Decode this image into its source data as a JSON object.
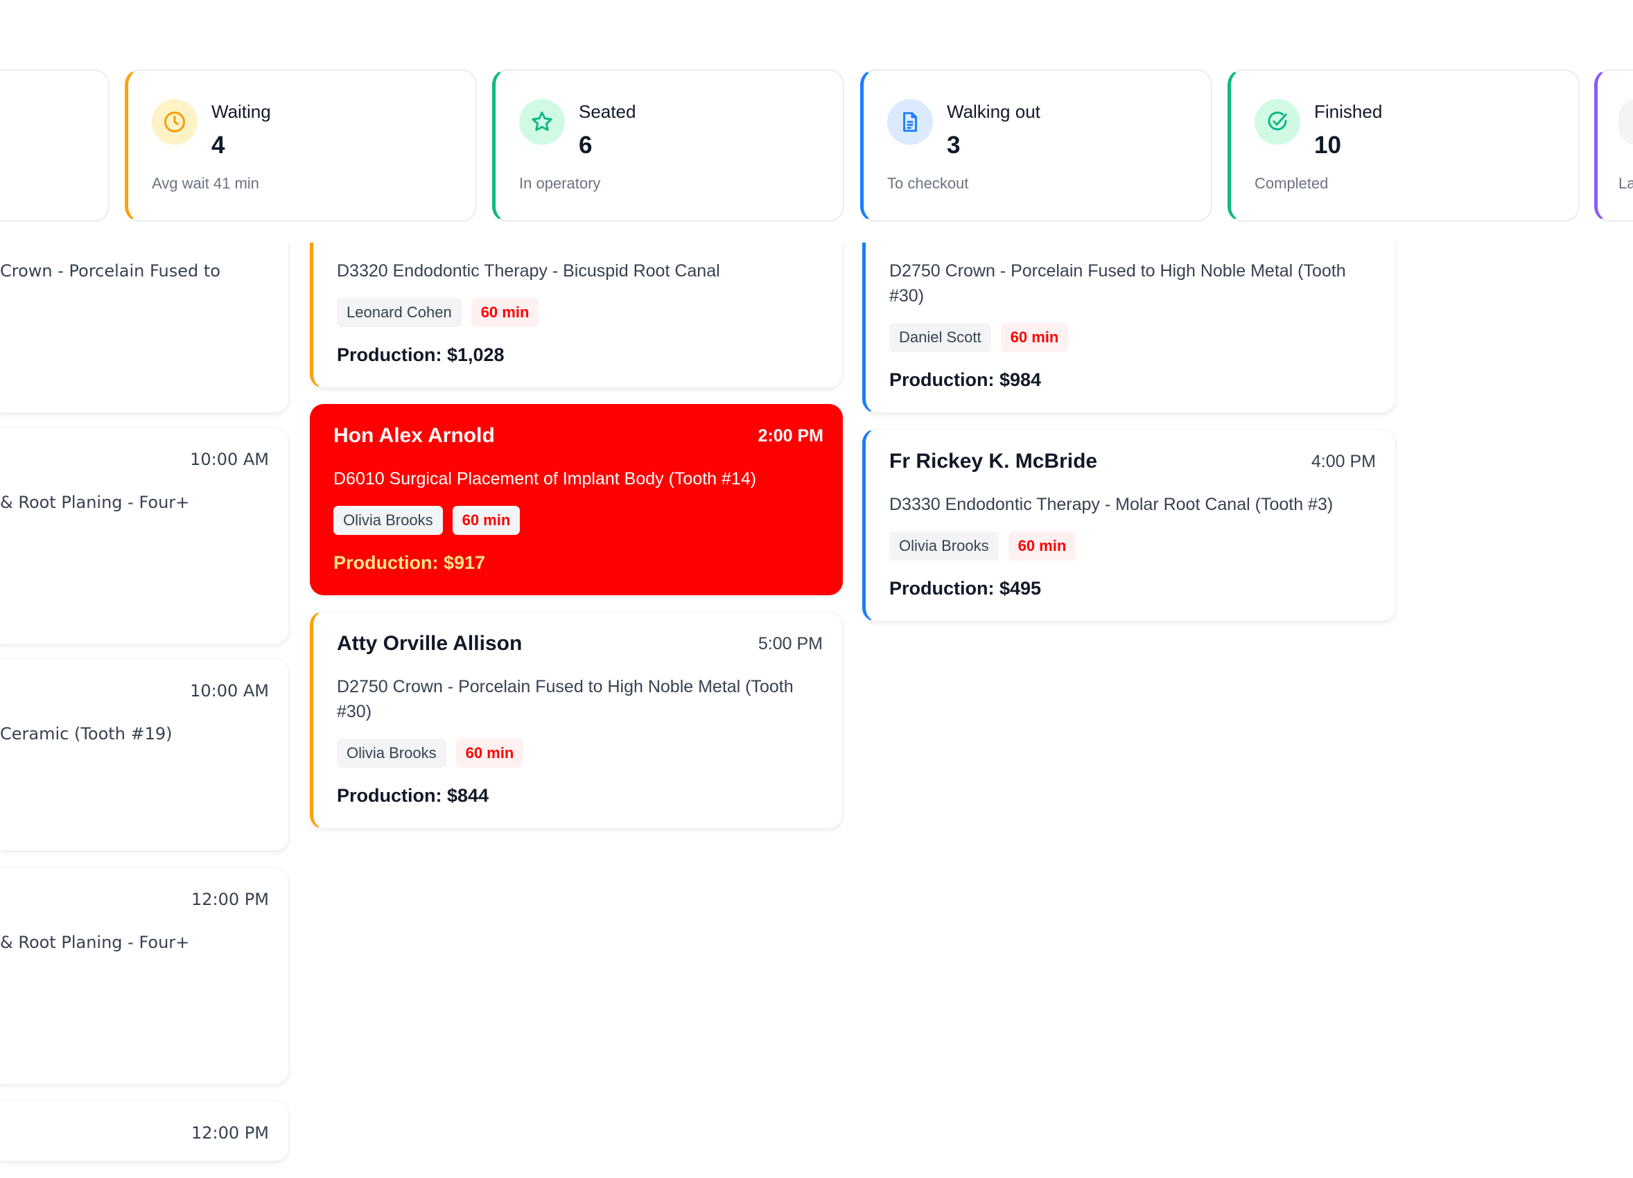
{
  "stats": [
    {
      "label": "",
      "value": "",
      "sub": "",
      "accent": "#e5e7eb"
    },
    {
      "label": "Waiting",
      "value": "4",
      "sub": "Avg wait 41 min",
      "accent": "#ff9f0a",
      "icon": "clock-icon",
      "icon_bg": "#fef3c7",
      "icon_color": "#f59e0b"
    },
    {
      "label": "Seated",
      "value": "6",
      "sub": "In operatory",
      "accent": "#10b981",
      "icon": "star-icon",
      "icon_bg": "#d1fae5",
      "icon_color": "#10b981"
    },
    {
      "label": "Walking out",
      "value": "3",
      "sub": "To checkout",
      "accent": "#1a7cff",
      "icon": "document-icon",
      "icon_bg": "#dbeafe",
      "icon_color": "#1a7cff"
    },
    {
      "label": "Finished",
      "value": "10",
      "sub": "Completed",
      "accent": "#10b981",
      "icon": "check-circle-icon",
      "icon_bg": "#d1fae5",
      "icon_color": "#10b981"
    },
    {
      "label": "",
      "value": "",
      "sub": "La",
      "accent": "#8b5cf6",
      "icon_bg": "#f3f4f6"
    }
  ],
  "left_column": [
    {
      "time": "",
      "desc": "Crown - Porcelain Fused to"
    },
    {
      "time": "10:00 AM",
      "desc": "& Root Planing - Four+"
    },
    {
      "time": "10:00 AM",
      "desc": "Ceramic (Tooth #19)"
    },
    {
      "time": "12:00 PM",
      "desc": "& Root Planing - Four+"
    },
    {
      "time": "12:00 PM",
      "desc": ""
    }
  ],
  "middle_column": [
    {
      "name": "",
      "time": "",
      "desc": "D3320 Endodontic Therapy - Bicuspid Root Canal",
      "provider": "Leonard Cohen",
      "duration": "60 min",
      "production": "Production: $1,028"
    },
    {
      "name": "Hon Alex Arnold",
      "time": "2:00 PM",
      "desc": "D6010 Surgical Placement of Implant Body (Tooth #14)",
      "provider": "Olivia Brooks",
      "duration": "60 min",
      "production": "Production: $917",
      "alert_color": "#ff0000"
    },
    {
      "name": "Atty Orville Allison",
      "time": "5:00 PM",
      "desc": "D2750 Crown - Porcelain Fused to High Noble Metal (Tooth #30)",
      "provider": "Olivia Brooks",
      "duration": "60 min",
      "production": "Production: $844"
    }
  ],
  "right_column": [
    {
      "name": "",
      "time": "",
      "desc": "D2750 Crown - Porcelain Fused to High Noble Metal (Tooth #30)",
      "provider": "Daniel Scott",
      "duration": "60 min",
      "production": "Production: $984"
    },
    {
      "name": "Fr Rickey K. McBride",
      "time": "4:00 PM",
      "desc": "D3330 Endodontic Therapy - Molar Root Canal (Tooth #3)",
      "provider": "Olivia Brooks",
      "duration": "60 min",
      "production": "Production: $495"
    }
  ]
}
